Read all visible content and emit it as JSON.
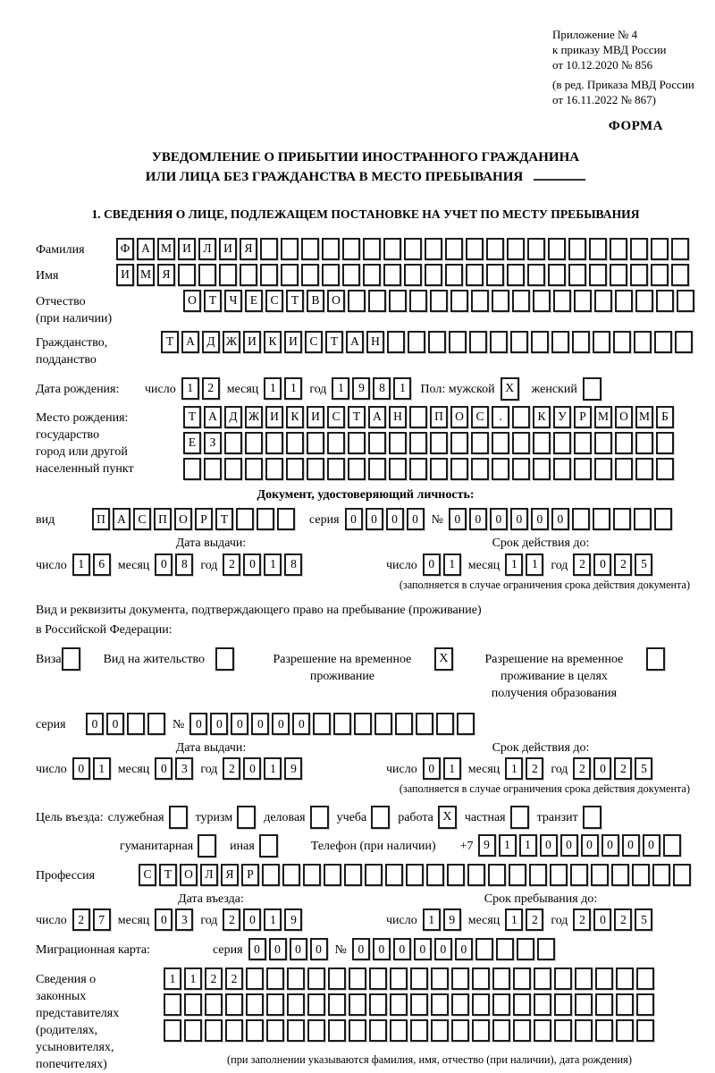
{
  "page": {
    "appendix_lines": [
      "Приложение № 4",
      "к приказу МВД России",
      "от 10.12.2020 № 856"
    ],
    "amendment_lines": [
      "(в ред. Приказа МВД России",
      "от 16.11.2022 № 867)"
    ],
    "form_label": "ФОРМА",
    "title_line1": "УВЕДОМЛЕНИЕ О ПРИБЫТИИ ИНОСТРАННОГО ГРАЖДАНИНА",
    "title_line2": "ИЛИ ЛИЦА БЕЗ ГРАЖДАНСТВА В МЕСТО ПРЕБЫВАНИЯ",
    "section1_title": "1. СВЕДЕНИЯ О ЛИЦЕ, ПОДЛЕЖАЩЕМ ПОСТАНОВКЕ НА УЧЕТ ПО МЕСТУ ПРЕБЫВАНИЯ"
  },
  "labels": {
    "day": "число",
    "month": "месяц",
    "year": "год",
    "seriya": "серия",
    "number_sign": "№",
    "issue_date": "Дата выдачи:",
    "valid_until": "Срок действия до:",
    "entry_date": "Дата въезда:",
    "stay_until": "Срок пребывания до:",
    "restriction_note": "(заполняется в случае ограничения срока действия документа)"
  },
  "surname": {
    "label": "Фамилия",
    "cells": {
      "value": "ФАМИЛИЯ",
      "count": 28
    }
  },
  "firstname": {
    "label": "Имя",
    "cells": {
      "value": "ИМЯ",
      "count": 28
    }
  },
  "patronymic": {
    "label": "Отчество\n(при наличии)",
    "cells": {
      "value": "ОТЧЕСТВО",
      "count": 25
    }
  },
  "citizenship": {
    "label": "Гражданство,\nподданство",
    "cells": {
      "value": "ТАДЖИКИСТАН",
      "count": 26
    }
  },
  "birth": {
    "label": "Дата рождения:",
    "day": {
      "value": "12",
      "count": 2
    },
    "month": {
      "value": "11",
      "count": 2
    },
    "year": {
      "value": "1981",
      "count": 4
    },
    "gender_label": "Пол: мужской",
    "male_mark": "X",
    "female_label": "женский",
    "female_mark": ""
  },
  "birthplace": {
    "label": "Место рождения:\nгосударство\nгород или другой\nнаселенный пункт",
    "row1": {
      "value": "ТАДЖИКИСТАН ПОС. КУРМОМБ",
      "count": 24
    },
    "row2": {
      "value": "ЕЗ",
      "count": 24
    },
    "row3": {
      "value": "",
      "count": 24
    }
  },
  "identity_doc": {
    "header": "Документ, удостоверяющий личность:",
    "type_label": "вид",
    "type_cells": {
      "value": "ПАСПОРТ",
      "count": 10
    },
    "series_cells": {
      "value": "0000",
      "count": 4
    },
    "number_cells": {
      "value": "000000",
      "count": 11
    },
    "issue": {
      "day": {
        "value": "16",
        "count": 2
      },
      "month": {
        "value": "08",
        "count": 2
      },
      "year": {
        "value": "2018",
        "count": 4
      }
    },
    "valid": {
      "day": {
        "value": "01",
        "count": 2
      },
      "month": {
        "value": "11",
        "count": 2
      },
      "year": {
        "value": "2025",
        "count": 4
      }
    }
  },
  "residence_doc": {
    "intro_line1": "Вид и реквизиты документа, подтверждающего право на пребывание (проживание)",
    "intro_line2": "в Российской Федерации:",
    "options": [
      {
        "label": "Виза",
        "mark": ""
      },
      {
        "label": "Вид на жительство",
        "mark": ""
      },
      {
        "label": "Разрешение на временное\nпроживание",
        "mark": "X"
      },
      {
        "label": "Разрешение на временное\nпроживание в целях\nполучения образования",
        "mark": ""
      }
    ],
    "series_cells": {
      "value": "00",
      "count": 4
    },
    "number_cells": {
      "value": "000000",
      "count": 14
    },
    "issue": {
      "day": {
        "value": "01",
        "count": 2
      },
      "month": {
        "value": "03",
        "count": 2
      },
      "year": {
        "value": "2019",
        "count": 4
      }
    },
    "valid": {
      "day": {
        "value": "01",
        "count": 2
      },
      "month": {
        "value": "12",
        "count": 2
      },
      "year": {
        "value": "2025",
        "count": 4
      }
    }
  },
  "purpose": {
    "label": "Цель въезда:",
    "options": [
      {
        "label": "служебная",
        "mark": ""
      },
      {
        "label": "туризм",
        "mark": ""
      },
      {
        "label": "деловая",
        "mark": ""
      },
      {
        "label": "учеба",
        "mark": ""
      },
      {
        "label": "работа",
        "mark": "X"
      },
      {
        "label": "частная",
        "mark": ""
      },
      {
        "label": "транзит",
        "mark": ""
      }
    ],
    "options2": [
      {
        "label": "гуманитарная",
        "mark": ""
      },
      {
        "label": "иная",
        "mark": ""
      }
    ],
    "phone_label": "Телефон (при наличии)",
    "phone_prefix": "+7",
    "phone_cells": {
      "value": "911000000",
      "count": 10
    }
  },
  "profession": {
    "label": "Профессия",
    "cells": {
      "value": "СТОЛЯР",
      "count": 27
    }
  },
  "entry": {
    "date": {
      "day": {
        "value": "27",
        "count": 2
      },
      "month": {
        "value": "03",
        "count": 2
      },
      "year": {
        "value": "2019",
        "count": 4
      }
    },
    "stay": {
      "day": {
        "value": "19",
        "count": 2
      },
      "month": {
        "value": "12",
        "count": 2
      },
      "year": {
        "value": "2025",
        "count": 4
      }
    }
  },
  "migration_card": {
    "label": "Миграционная карта:",
    "series_cells": {
      "value": "0000",
      "count": 4
    },
    "number_cells": {
      "value": "000000",
      "count": 10
    }
  },
  "representatives": {
    "label": "Сведения о\nзаконных\nпредставителях\n(родителях,\nусыновителях,\nпопечителях)",
    "row1": {
      "value": "1122",
      "count": 24
    },
    "row2": {
      "value": "",
      "count": 24
    },
    "row3": {
      "value": "",
      "count": 24
    },
    "note": "(при заполнении указываются фамилия, имя, отчество (при наличии), дата рождения)"
  }
}
